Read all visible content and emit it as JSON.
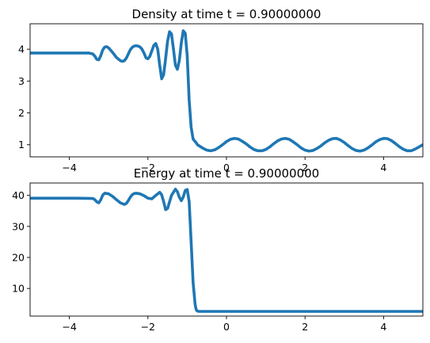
{
  "chart_data": [
    {
      "type": "line",
      "title": "Density at time t =     0.90000000",
      "xlabel": "",
      "ylabel": "",
      "xlim": [
        -5,
        5
      ],
      "ylim": [
        0.62,
        4.8
      ],
      "xticks": [
        -4,
        -2,
        0,
        2,
        4
      ],
      "yticks": [
        1,
        2,
        3,
        4
      ],
      "grid": false,
      "series": [
        {
          "color": "#1f77b4",
          "x": [
            -5.0,
            -4.6,
            -4.2,
            -3.8,
            -3.5,
            -3.4,
            -3.35,
            -3.3,
            -3.25,
            -3.2,
            -3.15,
            -3.1,
            -3.05,
            -3.0,
            -2.95,
            -2.9,
            -2.85,
            -2.8,
            -2.75,
            -2.7,
            -2.65,
            -2.6,
            -2.55,
            -2.5,
            -2.45,
            -2.4,
            -2.35,
            -2.3,
            -2.25,
            -2.2,
            -2.15,
            -2.1,
            -2.05,
            -2.0,
            -1.95,
            -1.9,
            -1.85,
            -1.8,
            -1.75,
            -1.7,
            -1.65,
            -1.6,
            -1.55,
            -1.5,
            -1.45,
            -1.4,
            -1.35,
            -1.3,
            -1.25,
            -1.2,
            -1.15,
            -1.1,
            -1.05,
            -1.0,
            -0.95,
            -0.9,
            -0.85,
            -0.8,
            -0.78,
            -0.77,
            -0.76,
            -0.75,
            -0.74,
            -0.7,
            -0.6,
            -0.5,
            -0.4,
            -0.3,
            -0.2,
            -0.1,
            0.0,
            0.1,
            0.2,
            0.3,
            0.4,
            0.5,
            0.6,
            0.7,
            0.8,
            0.9,
            1.0,
            1.1,
            1.2,
            1.3,
            1.4,
            1.5,
            1.6,
            1.7,
            1.8,
            1.9,
            2.0,
            2.1,
            2.2,
            2.3,
            2.4,
            2.5,
            2.6,
            2.7,
            2.8,
            2.9,
            3.0,
            3.1,
            3.2,
            3.3,
            3.4,
            3.5,
            3.6,
            3.7,
            3.8,
            3.9,
            4.0,
            4.1,
            4.2,
            4.3,
            4.4,
            4.5,
            4.6,
            4.7,
            4.8,
            4.9,
            5.0
          ],
          "y": [
            3.88,
            3.88,
            3.88,
            3.88,
            3.88,
            3.85,
            3.78,
            3.68,
            3.67,
            3.8,
            3.98,
            4.07,
            4.08,
            4.04,
            3.97,
            3.9,
            3.82,
            3.74,
            3.69,
            3.64,
            3.62,
            3.64,
            3.72,
            3.85,
            3.98,
            4.06,
            4.1,
            4.11,
            4.1,
            4.07,
            4.0,
            3.88,
            3.73,
            3.7,
            3.78,
            3.95,
            4.12,
            4.18,
            4.0,
            3.5,
            3.07,
            3.2,
            3.7,
            4.25,
            4.55,
            4.48,
            4.0,
            3.5,
            3.37,
            3.65,
            4.2,
            4.58,
            4.5,
            3.8,
            2.4,
            1.55,
            1.18,
            1.1,
            1.08,
            1.06,
            1.04,
            1.02,
            1.0,
            0.97,
            0.89,
            0.83,
            0.81,
            0.84,
            0.91,
            1.0,
            1.1,
            1.17,
            1.2,
            1.18,
            1.11,
            1.03,
            0.93,
            0.85,
            0.81,
            0.81,
            0.85,
            0.93,
            1.03,
            1.12,
            1.18,
            1.2,
            1.17,
            1.09,
            1.0,
            0.9,
            0.83,
            0.8,
            0.82,
            0.88,
            0.96,
            1.06,
            1.14,
            1.19,
            1.2,
            1.15,
            1.07,
            0.97,
            0.88,
            0.82,
            0.8,
            0.83,
            0.9,
            0.99,
            1.09,
            1.16,
            1.2,
            1.19,
            1.13,
            1.04,
            0.94,
            0.86,
            0.81,
            0.81,
            0.86,
            0.93,
            1.0
          ]
        }
      ]
    },
    {
      "type": "line",
      "title": "Energy at time t =     0.90000000",
      "xlabel": "",
      "ylabel": "",
      "xlim": [
        -5,
        5
      ],
      "ylim": [
        1.1,
        44.0
      ],
      "xticks": [
        -4,
        -2,
        0,
        2,
        4
      ],
      "yticks": [
        10,
        20,
        30,
        40
      ],
      "grid": false,
      "series": [
        {
          "color": "#1f77b4",
          "x": [
            -5.0,
            -4.6,
            -4.2,
            -3.8,
            -3.4,
            -3.35,
            -3.3,
            -3.25,
            -3.2,
            -3.15,
            -3.1,
            -3.0,
            -2.9,
            -2.8,
            -2.7,
            -2.6,
            -2.55,
            -2.5,
            -2.45,
            -2.4,
            -2.35,
            -2.3,
            -2.2,
            -2.1,
            -2.0,
            -1.9,
            -1.8,
            -1.7,
            -1.65,
            -1.6,
            -1.55,
            -1.5,
            -1.4,
            -1.3,
            -1.25,
            -1.2,
            -1.15,
            -1.1,
            -1.05,
            -1.0,
            -0.95,
            -0.9,
            -0.85,
            -0.8,
            -0.78,
            -0.76,
            -0.74,
            -0.7,
            -0.6,
            -0.4,
            -0.2,
            0.0,
            0.5,
            1.0,
            2.0,
            3.0,
            4.0,
            5.0
          ],
          "y": [
            39.1,
            39.1,
            39.1,
            39.1,
            39.0,
            38.6,
            37.9,
            37.6,
            38.6,
            40.1,
            40.7,
            40.5,
            39.7,
            38.6,
            37.6,
            37.1,
            37.4,
            38.3,
            39.4,
            40.2,
            40.6,
            40.7,
            40.5,
            39.9,
            39.1,
            38.9,
            40.0,
            41.0,
            40.2,
            38.0,
            35.4,
            35.8,
            40.0,
            42.0,
            41.2,
            39.4,
            38.3,
            39.5,
            41.6,
            41.9,
            38.0,
            25.0,
            12.0,
            5.0,
            3.6,
            2.9,
            2.7,
            2.6,
            2.6,
            2.6,
            2.6,
            2.6,
            2.6,
            2.6,
            2.6,
            2.6,
            2.6,
            2.6
          ]
        }
      ]
    }
  ]
}
